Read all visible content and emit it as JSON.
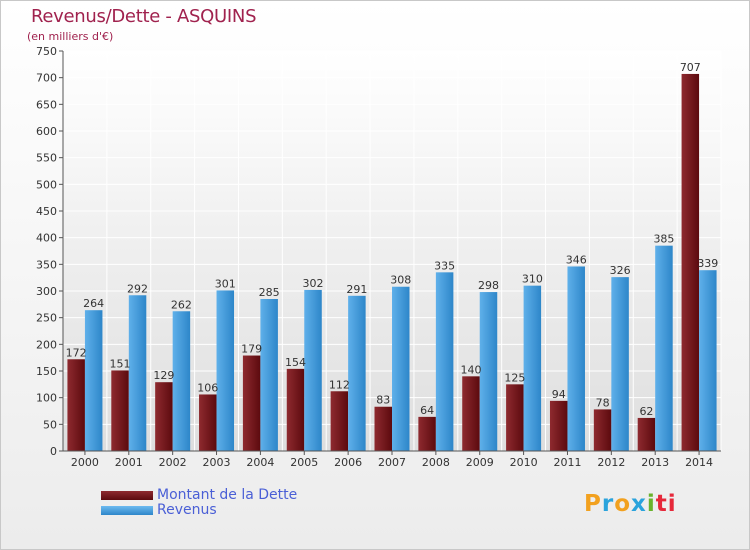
{
  "title": "Revenus/Dette - ASQUINS",
  "subtitle": "(en milliers d'€)",
  "logo": {
    "text": "Proxiti",
    "colors": [
      "#f2a11f",
      "#2aa3dc",
      "#69b32b",
      "#e6283a"
    ]
  },
  "legend": [
    {
      "label": "Montant de la Dette",
      "color": "#7a1217"
    },
    {
      "label": "Revenus",
      "color": "#3d97d9"
    }
  ],
  "chart_data": {
    "type": "bar",
    "title": "Revenus/Dette - ASQUINS",
    "subtitle": "(en milliers d'€)",
    "categories": [
      "2000",
      "2001",
      "2002",
      "2003",
      "2004",
      "2005",
      "2006",
      "2007",
      "2008",
      "2009",
      "2010",
      "2011",
      "2012",
      "2013",
      "2014"
    ],
    "series": [
      {
        "name": "Montant de la Dette",
        "color": "#7a1217",
        "values": [
          172,
          151,
          129,
          106,
          179,
          154,
          112,
          83,
          64,
          140,
          125,
          94,
          78,
          62,
          707
        ]
      },
      {
        "name": "Revenus",
        "color": "#3d97d9",
        "values": [
          264,
          292,
          262,
          301,
          285,
          302,
          291,
          308,
          335,
          298,
          310,
          346,
          326,
          385,
          339
        ]
      }
    ],
    "ylim": [
      0,
      750
    ],
    "yticks": [
      0,
      50,
      100,
      150,
      200,
      250,
      300,
      350,
      400,
      450,
      500,
      550,
      600,
      650,
      700,
      750
    ],
    "grid": true,
    "legend_position": "bottom-left"
  }
}
